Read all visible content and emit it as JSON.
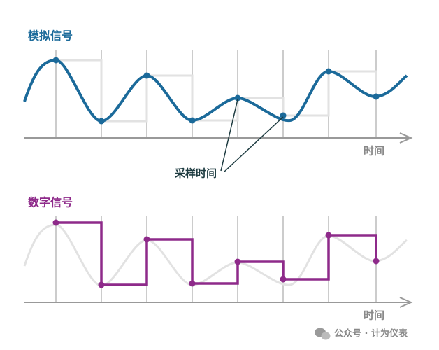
{
  "top": {
    "title": "模拟信号",
    "x_axis_label": "时间",
    "annotation": "采样时间"
  },
  "bottom": {
    "title": "数字信号",
    "x_axis_label": "时间"
  },
  "watermark": "公众号 · 计为仪表"
}
